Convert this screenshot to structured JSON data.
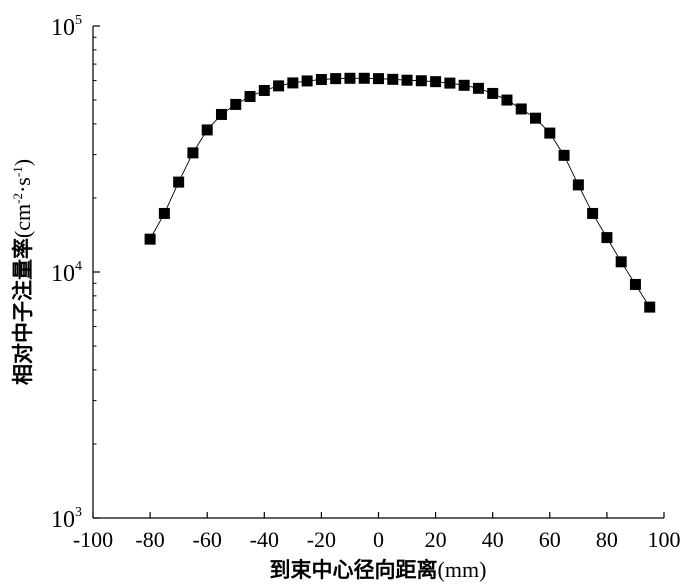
{
  "chart_data": {
    "type": "scatter",
    "title": "",
    "xlabel_text": "到束中心径向距离",
    "xlabel_unit": "(mm)",
    "ylabel_text": "相对中子注量率",
    "ylabel_unit_base": "(cm",
    "ylabel_unit_exp1": "-2",
    "ylabel_unit_mid": "·s",
    "ylabel_unit_exp2": "-1",
    "ylabel_unit_end": ")",
    "x_scale": "linear",
    "y_scale": "log",
    "xlim": [
      -100,
      100
    ],
    "ylim": [
      1000,
      100000
    ],
    "x_ticks": [
      -100,
      -80,
      -60,
      -40,
      -20,
      0,
      20,
      40,
      60,
      80,
      100
    ],
    "x_tick_labels": [
      "-100",
      "-80",
      "-60",
      "-40",
      "-20",
      "0",
      "20",
      "40",
      "60",
      "80",
      "100"
    ],
    "y_ticks": [
      1000,
      10000,
      100000
    ],
    "y_tick_bases": [
      "10",
      "10",
      "10"
    ],
    "y_tick_exps": [
      "3",
      "4",
      "5"
    ],
    "grid": false,
    "marker": "square",
    "line": "thin-connecting",
    "color": "#000000",
    "series": [
      {
        "x": [
          -80,
          -75,
          -70,
          -65,
          -60,
          -55,
          -50,
          -45,
          -40,
          -35,
          -30,
          -25,
          -20,
          -15,
          -10,
          -5,
          0,
          5,
          10,
          15,
          20,
          25,
          30,
          35,
          40,
          45,
          50,
          55,
          60,
          65,
          70,
          75,
          80,
          85,
          90,
          95
        ],
        "y": [
          13600,
          17300,
          23200,
          30500,
          37800,
          43700,
          48000,
          51700,
          54700,
          57100,
          58700,
          59800,
          60600,
          61100,
          61300,
          61300,
          61100,
          60700,
          60200,
          59900,
          59400,
          58600,
          57400,
          55800,
          53200,
          50000,
          46000,
          42200,
          36700,
          29800,
          22600,
          17300,
          13800,
          11000,
          8900,
          7200
        ]
      }
    ]
  }
}
